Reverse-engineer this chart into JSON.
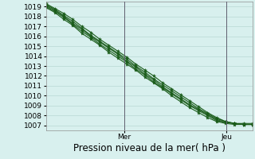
{
  "title": "Pression niveau de la mer( hPa )",
  "ylabel_ticks": [
    1007,
    1008,
    1009,
    1010,
    1011,
    1012,
    1013,
    1014,
    1015,
    1016,
    1017,
    1018,
    1019
  ],
  "ylim": [
    1006.5,
    1019.5
  ],
  "xlim": [
    0,
    1
  ],
  "xtick_positions": [
    0.38,
    0.875
  ],
  "xtick_labels": [
    "Mer",
    "Jeu"
  ],
  "background_color": "#d8f0ee",
  "grid_color": "#b8d8d4",
  "line_color": "#1a5c1a",
  "marker": "*",
  "markersize": 3.0,
  "linewidth": 0.8,
  "vline_color": "#606070",
  "series": [
    [
      1019.3,
      1018.8,
      1018.3,
      1017.7,
      1017.0,
      1016.4,
      1015.7,
      1015.1,
      1014.5,
      1013.9,
      1013.2,
      1012.6,
      1012.0,
      1011.3,
      1010.7,
      1010.1,
      1009.5,
      1008.9,
      1008.3,
      1007.8,
      1007.4,
      1007.2,
      1007.1,
      1007.1
    ],
    [
      1019.2,
      1018.7,
      1018.1,
      1017.5,
      1016.8,
      1016.1,
      1015.5,
      1014.9,
      1014.3,
      1013.7,
      1013.0,
      1012.4,
      1011.7,
      1011.1,
      1010.5,
      1009.9,
      1009.3,
      1008.7,
      1008.2,
      1007.7,
      1007.4,
      1007.2,
      1007.2,
      1007.2
    ],
    [
      1019.1,
      1018.6,
      1018.0,
      1017.3,
      1016.7,
      1016.0,
      1015.4,
      1014.8,
      1014.2,
      1013.5,
      1012.9,
      1012.2,
      1011.6,
      1010.9,
      1010.3,
      1009.7,
      1009.1,
      1008.6,
      1008.1,
      1007.6,
      1007.3,
      1007.2,
      1007.1,
      1007.1
    ],
    [
      1019.0,
      1018.5,
      1017.9,
      1017.2,
      1016.5,
      1015.9,
      1015.2,
      1014.6,
      1014.0,
      1013.4,
      1012.7,
      1012.1,
      1011.4,
      1010.8,
      1010.2,
      1009.6,
      1009.0,
      1008.5,
      1008.0,
      1007.5,
      1007.3,
      1007.2,
      1007.1,
      1007.1
    ],
    [
      1018.9,
      1018.4,
      1017.7,
      1017.1,
      1016.3,
      1015.7,
      1015.1,
      1014.4,
      1013.8,
      1013.2,
      1012.6,
      1011.9,
      1011.3,
      1010.7,
      1010.0,
      1009.4,
      1008.8,
      1008.3,
      1007.8,
      1007.4,
      1007.2,
      1007.1,
      1007.1,
      1007.1
    ]
  ],
  "title_fontsize": 8.5,
  "tick_fontsize": 6.5
}
